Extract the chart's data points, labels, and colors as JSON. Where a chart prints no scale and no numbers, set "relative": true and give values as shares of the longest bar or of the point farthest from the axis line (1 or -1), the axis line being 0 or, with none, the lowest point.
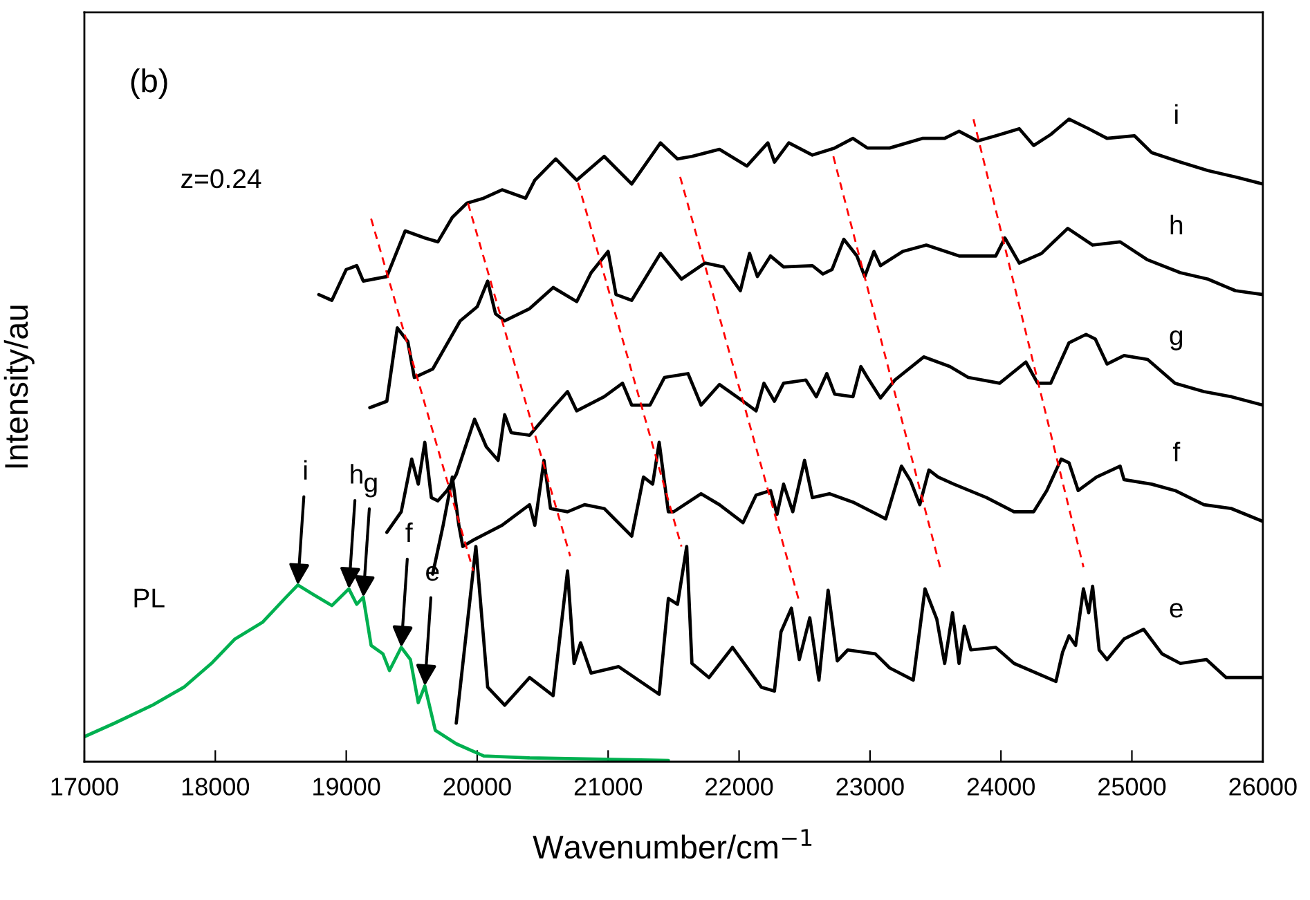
{
  "chart_data": {
    "type": "line",
    "relative": true,
    "xlim": [
      17000,
      26000
    ],
    "xticks": [
      17000,
      18000,
      19000,
      20000,
      21000,
      22000,
      23000,
      24000,
      25000,
      26000
    ],
    "xlabel": "Wavenumber/cm$^{−1}$",
    "ylabel": "Intensity/au",
    "tick_labels": "x",
    "line_style": "solid",
    "annotations": [
      "(b)",
      "z=0.24",
      {
        "text": "i",
        "x": 18630,
        "y": 0.275
      },
      {
        "text": "h",
        "x": 19020,
        "y": 0.269
      },
      {
        "text": "g",
        "x": 19130,
        "y": 0.256
      },
      {
        "text": "f",
        "x": 19420,
        "y": 0.178
      },
      {
        "text": "e",
        "x": 19600,
        "y": 0.118
      }
    ],
    "series": [
      {
        "name": "e",
        "color": "#000000",
        "x": [
          19840,
          19990,
          20080,
          20210,
          20400,
          20580,
          20690,
          20740,
          20790,
          20870,
          21080,
          21390,
          21460,
          21530,
          21600,
          21640,
          21770,
          21950,
          22170,
          22270,
          22320,
          22400,
          22460,
          22540,
          22610,
          22680,
          22750,
          22830,
          23040,
          23150,
          23330,
          23420,
          23510,
          23570,
          23630,
          23680,
          23720,
          23770,
          23960,
          24100,
          24420,
          24470,
          24520,
          24570,
          24630,
          24670,
          24700,
          24750,
          24810,
          24940,
          25090,
          25230,
          25370,
          25570,
          25720,
          26000
        ],
        "values": [
          0.06,
          0.335,
          0.116,
          0.088,
          0.131,
          0.103,
          0.297,
          0.153,
          0.185,
          0.138,
          0.148,
          0.105,
          0.254,
          0.245,
          0.335,
          0.153,
          0.131,
          0.178,
          0.116,
          0.11,
          0.202,
          0.239,
          0.159,
          0.224,
          0.127,
          0.267,
          0.157,
          0.174,
          0.168,
          0.146,
          0.127,
          0.269,
          0.222,
          0.153,
          0.232,
          0.153,
          0.211,
          0.174,
          0.178,
          0.153,
          0.125,
          0.17,
          0.196,
          0.181,
          0.269,
          0.232,
          0.273,
          0.174,
          0.159,
          0.191,
          0.206,
          0.168,
          0.153,
          0.159,
          0.131,
          0.131
        ]
      },
      {
        "name": "f",
        "color": "#000000",
        "x": [
          19660,
          19740,
          19810,
          19860,
          19890,
          19980,
          20190,
          20400,
          20440,
          20510,
          20560,
          20690,
          20820,
          20970,
          21180,
          21270,
          21340,
          21390,
          21460,
          21500,
          21710,
          21850,
          22030,
          22130,
          22240,
          22290,
          22340,
          22410,
          22500,
          22560,
          22690,
          22870,
          23120,
          23240,
          23310,
          23380,
          23450,
          23520,
          23640,
          23890,
          24100,
          24250,
          24350,
          24460,
          24520,
          24590,
          24730,
          24910,
          24940,
          25150,
          25330,
          25550,
          25760,
          26000
        ],
        "values": [
          0.292,
          0.368,
          0.443,
          0.368,
          0.335,
          0.346,
          0.368,
          0.4,
          0.368,
          0.469,
          0.394,
          0.389,
          0.4,
          0.394,
          0.351,
          0.443,
          0.432,
          0.497,
          0.389,
          0.389,
          0.417,
          0.4,
          0.372,
          0.415,
          0.422,
          0.385,
          0.432,
          0.389,
          0.469,
          0.411,
          0.417,
          0.404,
          0.378,
          0.46,
          0.437,
          0.4,
          0.454,
          0.443,
          0.432,
          0.411,
          0.389,
          0.389,
          0.422,
          0.471,
          0.465,
          0.422,
          0.443,
          0.46,
          0.439,
          0.432,
          0.422,
          0.4,
          0.394,
          0.374
        ]
      },
      {
        "name": "g",
        "color": "#000000",
        "x": [
          19310,
          19420,
          19500,
          19550,
          19600,
          19650,
          19700,
          19770,
          19840,
          19980,
          20070,
          20160,
          20210,
          20260,
          20400,
          20580,
          20690,
          20760,
          20970,
          21110,
          21180,
          21320,
          21430,
          21610,
          21710,
          21850,
          22030,
          22130,
          22190,
          22270,
          22340,
          22510,
          22590,
          22670,
          22730,
          22870,
          22930,
          22980,
          23080,
          23190,
          23410,
          23610,
          23750,
          23990,
          24190,
          24280,
          24380,
          24520,
          24650,
          24720,
          24810,
          24940,
          25120,
          25330,
          25550,
          25760,
          26000
        ],
        "values": [
          0.357,
          0.389,
          0.471,
          0.432,
          0.497,
          0.411,
          0.406,
          0.422,
          0.447,
          0.533,
          0.49,
          0.469,
          0.54,
          0.512,
          0.508,
          0.551,
          0.576,
          0.546,
          0.568,
          0.589,
          0.555,
          0.555,
          0.598,
          0.604,
          0.555,
          0.587,
          0.561,
          0.546,
          0.589,
          0.561,
          0.589,
          0.594,
          0.568,
          0.604,
          0.572,
          0.568,
          0.615,
          0.598,
          0.566,
          0.594,
          0.63,
          0.615,
          0.598,
          0.589,
          0.622,
          0.589,
          0.589,
          0.652,
          0.665,
          0.658,
          0.619,
          0.632,
          0.626,
          0.589,
          0.576,
          0.568,
          0.555
        ]
      },
      {
        "name": "h",
        "color": "#000000",
        "x": [
          19180,
          19310,
          19390,
          19470,
          19520,
          19660,
          19870,
          20000,
          20080,
          20140,
          20210,
          20400,
          20580,
          20760,
          20870,
          21000,
          21060,
          21180,
          21400,
          21560,
          21740,
          21880,
          22010,
          22080,
          22140,
          22240,
          22340,
          22560,
          22640,
          22710,
          22800,
          22900,
          22960,
          23030,
          23080,
          23250,
          23430,
          23680,
          23960,
          24030,
          24140,
          24310,
          24510,
          24700,
          24910,
          25120,
          25370,
          25580,
          25790,
          26000
        ],
        "values": [
          0.551,
          0.561,
          0.675,
          0.654,
          0.598,
          0.611,
          0.686,
          0.708,
          0.748,
          0.697,
          0.686,
          0.705,
          0.738,
          0.716,
          0.761,
          0.794,
          0.727,
          0.718,
          0.791,
          0.751,
          0.776,
          0.77,
          0.733,
          0.791,
          0.755,
          0.787,
          0.77,
          0.772,
          0.759,
          0.766,
          0.813,
          0.787,
          0.755,
          0.794,
          0.772,
          0.794,
          0.804,
          0.787,
          0.787,
          0.815,
          0.776,
          0.791,
          0.83,
          0.804,
          0.809,
          0.781,
          0.761,
          0.751,
          0.733,
          0.727
        ]
      },
      {
        "name": "i",
        "color": "#000000",
        "x": [
          18790,
          18890,
          19000,
          19080,
          19130,
          19310,
          19450,
          19600,
          19700,
          19810,
          19920,
          20050,
          20190,
          20370,
          20440,
          20600,
          20760,
          20970,
          21180,
          21400,
          21530,
          21640,
          21850,
          22060,
          22220,
          22270,
          22380,
          22560,
          22730,
          22870,
          22980,
          23150,
          23400,
          23570,
          23680,
          23820,
          23960,
          24140,
          24250,
          24380,
          24520,
          24670,
          24810,
          25020,
          25150,
          25370,
          25580,
          25790,
          26000
        ],
        "values": [
          0.727,
          0.718,
          0.766,
          0.772,
          0.748,
          0.755,
          0.826,
          0.815,
          0.809,
          0.847,
          0.869,
          0.877,
          0.89,
          0.877,
          0.905,
          0.938,
          0.905,
          0.942,
          0.899,
          0.963,
          0.938,
          0.942,
          0.953,
          0.927,
          0.963,
          0.933,
          0.963,
          0.944,
          0.955,
          0.97,
          0.955,
          0.955,
          0.97,
          0.97,
          0.981,
          0.966,
          0.974,
          0.985,
          0.959,
          0.976,
          1,
          0.985,
          0.97,
          0.974,
          0.948,
          0.933,
          0.92,
          0.91,
          0.899
        ]
      },
      {
        "name": "PL",
        "color": "#00b050",
        "x": [
          17000,
          17230,
          17520,
          17760,
          17970,
          18150,
          18360,
          18540,
          18630,
          18750,
          18890,
          19020,
          19080,
          19130,
          19190,
          19280,
          19330,
          19420,
          19490,
          19550,
          19600,
          19680,
          19840,
          20050,
          20400,
          21460
        ],
        "values": [
          0.039,
          0.06,
          0.088,
          0.116,
          0.153,
          0.191,
          0.217,
          0.256,
          0.275,
          0.26,
          0.243,
          0.269,
          0.245,
          0.256,
          0.181,
          0.168,
          0.142,
          0.178,
          0.159,
          0.092,
          0.118,
          0.049,
          0.028,
          0.009,
          0.006,
          0.002
        ]
      },
      {
        "color": "#ff0000",
        "line_style": "dashed",
        "x": [
          19190,
          19970
        ],
        "values": [
          0.845,
          0.297
        ]
      },
      {
        "color": "#ff0000",
        "line_style": "dashed",
        "x": [
          19930,
          20710
        ],
        "values": [
          0.869,
          0.32
        ]
      },
      {
        "color": "#ff0000",
        "line_style": "dashed",
        "x": [
          20770,
          21560
        ],
        "values": [
          0.901,
          0.335
        ]
      },
      {
        "color": "#ff0000",
        "line_style": "dashed",
        "x": [
          21550,
          22460
        ],
        "values": [
          0.91,
          0.249
        ]
      },
      {
        "color": "#ff0000",
        "line_style": "dashed",
        "x": [
          22720,
          23540
        ],
        "values": [
          0.942,
          0.299
        ]
      },
      {
        "color": "#ff0000",
        "line_style": "dashed",
        "x": [
          23790,
          24630
        ],
        "values": [
          1,
          0.303
        ]
      }
    ]
  }
}
